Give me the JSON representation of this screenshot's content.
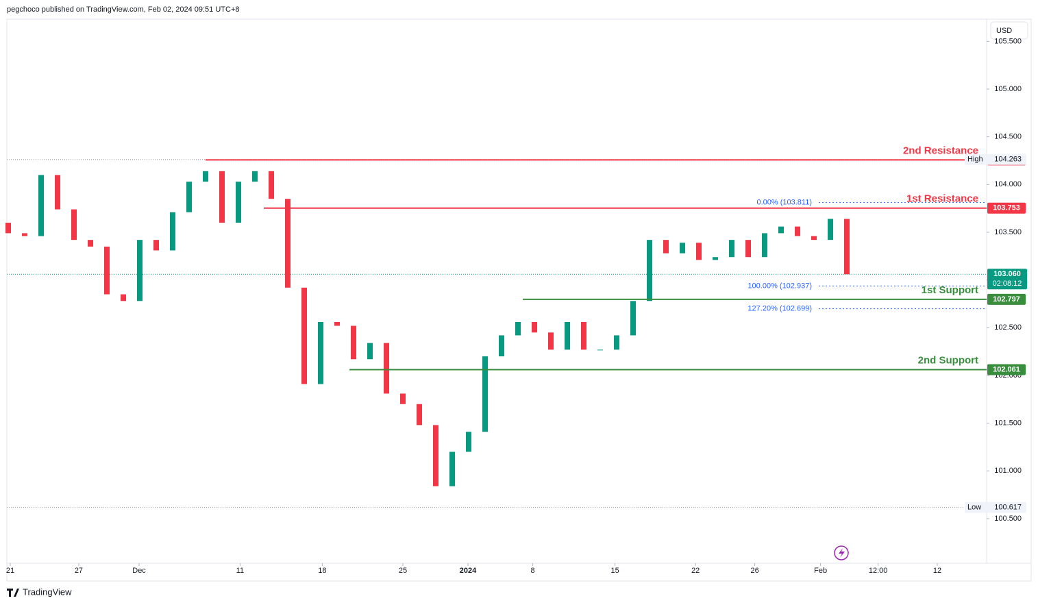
{
  "header": "pegchoco published on TradingView.com, Feb 02, 2024 09:51 UTC+8",
  "currency": "USD",
  "brand": "TradingView",
  "chart_data": {
    "type": "candlestick",
    "up_color": "#089981",
    "down_color": "#f23645",
    "grid": false,
    "open": [
      103.6,
      103.49,
      103.46,
      104.1,
      103.74,
      103.42,
      103.35,
      102.85,
      102.78,
      103.42,
      103.31,
      103.71,
      104.03,
      104.14,
      103.6,
      104.03,
      104.14,
      103.85,
      102.92,
      101.91,
      102.56,
      102.52,
      102.17,
      102.34,
      101.81,
      101.7,
      101.48,
      100.84,
      101.2,
      101.41,
      102.2,
      102.42,
      102.56,
      102.45,
      102.27,
      102.56,
      102.27,
      102.27,
      102.42,
      102.78,
      103.42,
      103.28,
      103.39,
      103.21,
      103.24,
      103.42,
      103.24,
      103.49,
      103.56,
      103.46,
      103.42,
      103.64
    ],
    "high": {
      "name": "High",
      "value": 104.263
    },
    "low": {
      "name": "Low",
      "value": 100.617
    },
    "close": [
      103.49,
      103.46,
      104.1,
      103.74,
      103.42,
      103.35,
      102.85,
      102.78,
      103.42,
      103.31,
      103.71,
      104.03,
      104.14,
      103.6,
      104.03,
      104.14,
      103.85,
      102.92,
      101.91,
      102.56,
      102.52,
      102.17,
      102.34,
      101.81,
      101.7,
      101.48,
      100.84,
      101.2,
      101.41,
      102.2,
      102.42,
      102.56,
      102.45,
      102.27,
      102.56,
      102.27,
      102.27,
      102.42,
      102.78,
      103.42,
      103.28,
      103.39,
      103.21,
      103.24,
      103.42,
      103.24,
      103.49,
      103.56,
      103.46,
      103.42,
      103.64,
      103.06
    ],
    "xlim": [
      -0.083,
      59.5
    ],
    "xticks": [
      {
        "value": 0.125,
        "label": "21"
      },
      {
        "value": 4.29,
        "label": "27"
      },
      {
        "value": 7.96,
        "label": "Dec"
      },
      {
        "value": 14.1,
        "label": "11"
      },
      {
        "value": 19.1,
        "label": "18"
      },
      {
        "value": 24.0,
        "label": "25"
      },
      {
        "value": 27.96,
        "label": "2024"
      },
      {
        "value": 31.9,
        "label": "8"
      },
      {
        "value": 36.9,
        "label": "15"
      },
      {
        "value": 41.8,
        "label": "22"
      },
      {
        "value": 45.4,
        "label": "26"
      },
      {
        "value": 49.4,
        "label": "Feb"
      },
      {
        "value": 52.9,
        "label": "12:00"
      },
      {
        "value": 56.5,
        "label": "12"
      }
    ],
    "ylim": [
      100.033,
      105.718
    ],
    "yticks": [
      {
        "value": 100.5,
        "label": "100.500"
      },
      {
        "value": 101,
        "label": "101.000"
      },
      {
        "value": 101.5,
        "label": "101.500"
      },
      {
        "value": 102,
        "label": "102.000"
      },
      {
        "value": 102.5,
        "label": "102.500"
      },
      {
        "value": 103,
        "label": "103.000"
      },
      {
        "value": 103.5,
        "label": "103.500"
      },
      {
        "value": 104,
        "label": "104.000"
      },
      {
        "value": 104.5,
        "label": "104.500"
      },
      {
        "value": 105,
        "label": "105.000"
      },
      {
        "value": 105.5,
        "label": "105.500"
      }
    ],
    "levels": [
      {
        "name": "2nd Resistance",
        "price": 104.258,
        "color": "#f23645"
      },
      {
        "name": "1st Resistance",
        "price": 103.753,
        "color": "#f23645"
      },
      {
        "name": "1st Support",
        "price": 102.797,
        "color": "#388e3c"
      },
      {
        "name": "2nd Support",
        "price": 102.061,
        "color": "#388e3c"
      }
    ],
    "fib": [
      {
        "label": "0.00% (103.811)",
        "value": 103.811
      },
      {
        "label": "100.00% (102.937)",
        "value": 102.937
      },
      {
        "label": "127.20% (102.699)",
        "value": 102.699
      }
    ],
    "current_price": {
      "value": 103.06,
      "label": "103.060"
    },
    "countdown": "02:08:12"
  }
}
